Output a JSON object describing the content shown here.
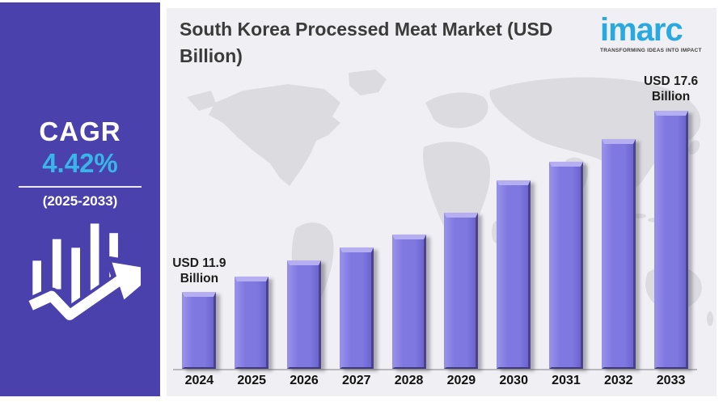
{
  "sidebar": {
    "cagr_label": "CAGR",
    "cagr_value": "4.42%",
    "cagr_period": "(2025-2033)",
    "background_color": "#4a41ad",
    "accent_color": "#38b6ea",
    "icon": "bar-chart-growth-arrow-icon"
  },
  "header": {
    "title": "South Korea Processed Meat Market (USD Billion)"
  },
  "logo": {
    "name": "imarc",
    "tagline": "TRANSFORMING IDEAS INTO IMPACT",
    "color": "#29a9e1"
  },
  "chart_data": {
    "type": "bar",
    "title": "South Korea Processed Meat Market (USD Billion)",
    "unit": "USD Billion",
    "categories": [
      "2024",
      "2025",
      "2026",
      "2027",
      "2028",
      "2029",
      "2030",
      "2031",
      "2032",
      "2033"
    ],
    "values": [
      11.9,
      12.4,
      12.9,
      13.3,
      13.7,
      14.4,
      15.4,
      16.0,
      16.7,
      17.6
    ],
    "xlabel": "",
    "ylabel": "",
    "ylim": [
      9.5,
      18.0
    ],
    "grid": false,
    "legend": "none",
    "bar_color": "#7f78e0",
    "annotations": [
      {
        "index": 0,
        "lines": [
          "USD 11.9",
          "Billion"
        ],
        "text": "USD 11.9 Billion"
      },
      {
        "index": 9,
        "lines": [
          "USD 17.6",
          "Billion"
        ],
        "text": "USD 17.6 Billion"
      }
    ]
  }
}
